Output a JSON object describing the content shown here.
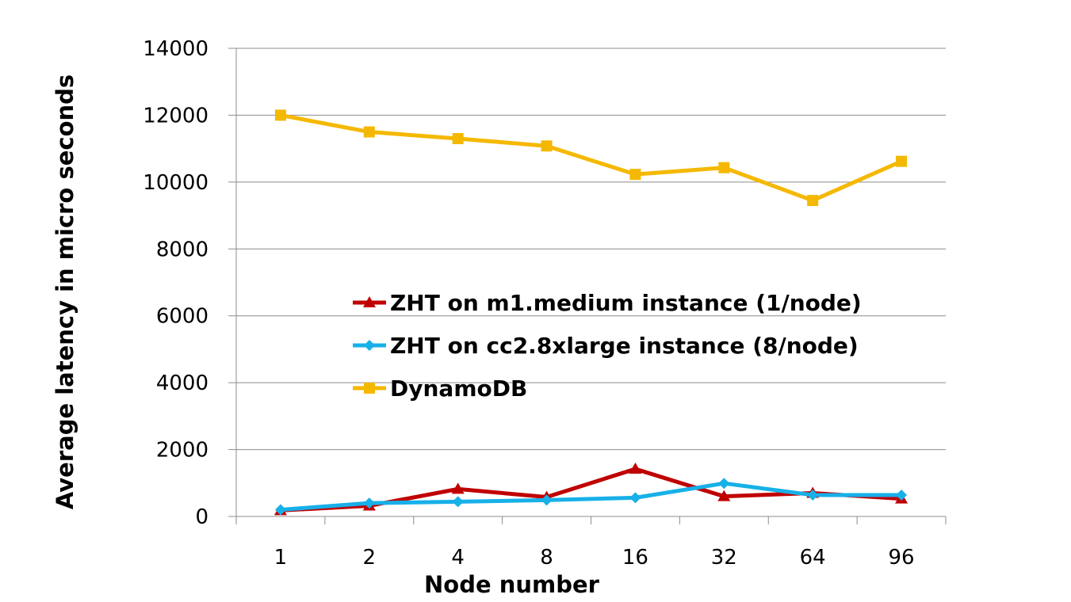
{
  "chart_data": {
    "type": "line",
    "title": "",
    "xlabel": "Node number",
    "ylabel": "Average latency in micro seconds",
    "categories": [
      "1",
      "2",
      "4",
      "8",
      "16",
      "32",
      "64",
      "96"
    ],
    "ylim": [
      0,
      14000
    ],
    "yticks": [
      "0",
      "2000",
      "4000",
      "6000",
      "8000",
      "10000",
      "12000",
      "14000"
    ],
    "grid": true,
    "legend_position": "center",
    "series": [
      {
        "name": "ZHT on m1.medium instance (1/node)",
        "color": "#C00000",
        "marker": "triangle",
        "values": [
          180,
          320,
          820,
          580,
          1420,
          600,
          700,
          530
        ]
      },
      {
        "name": "ZHT on cc2.8xlarge instance (8/node)",
        "color": "#17B0E8",
        "marker": "diamond",
        "values": [
          200,
          400,
          440,
          490,
          560,
          990,
          640,
          640
        ]
      },
      {
        "name": "DynamoDB",
        "color": "#F5B800",
        "marker": "square",
        "values": [
          12000,
          11500,
          11300,
          11080,
          10230,
          10430,
          9450,
          10620
        ]
      }
    ]
  }
}
